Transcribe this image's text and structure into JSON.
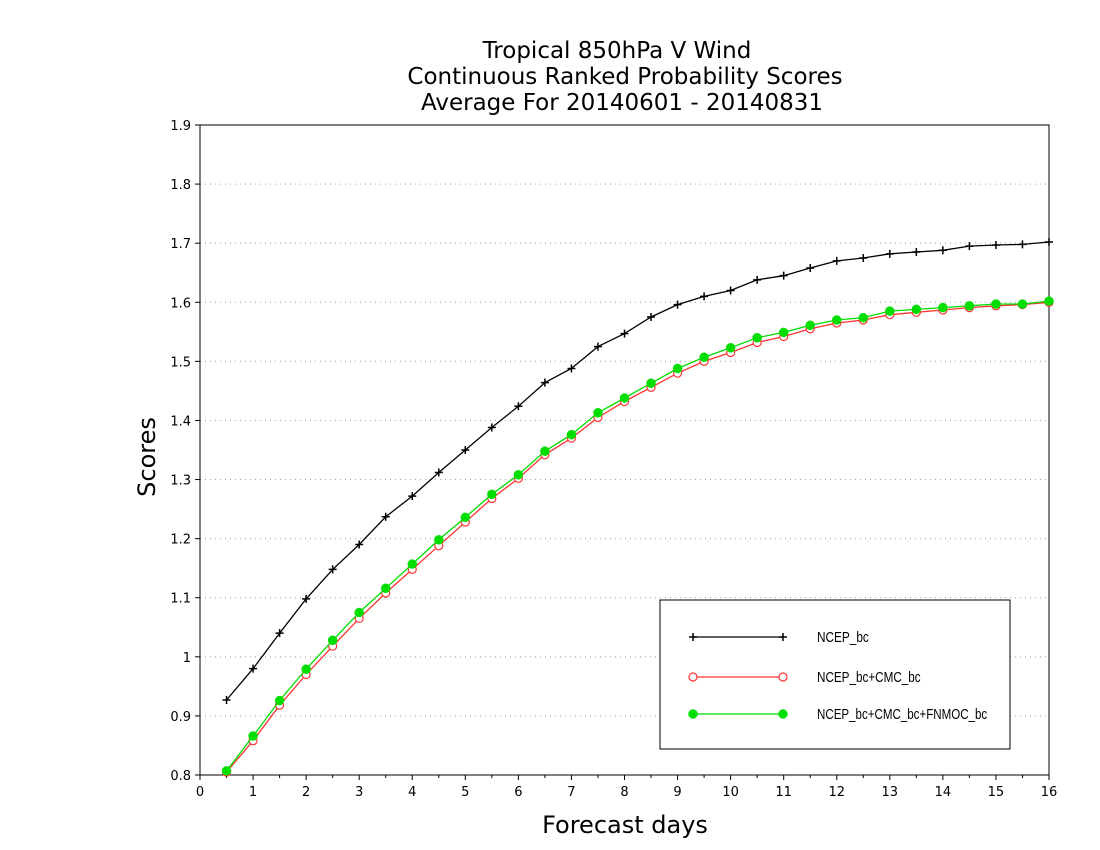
{
  "chart_data": {
    "type": "line",
    "title": [
      "Tropical 850hPa V Wind",
      "Continuous Ranked Probability Scores",
      "Average For 20140601 - 20140831"
    ],
    "xlabel": "Forecast days",
    "ylabel": "Scores",
    "xlim": [
      0,
      16
    ],
    "ylim": [
      0.8,
      1.9
    ],
    "x_ticks": [
      0,
      1,
      2,
      3,
      4,
      5,
      6,
      7,
      8,
      9,
      10,
      11,
      12,
      13,
      14,
      15,
      16
    ],
    "y_ticks": [
      0.8,
      0.9,
      1,
      1.1,
      1.2,
      1.3,
      1.4,
      1.5,
      1.6,
      1.7,
      1.8,
      1.9
    ],
    "y_tick_labels": [
      "0.8",
      "0.9",
      "1",
      "1.1",
      "1.2",
      "1.3",
      "1.4",
      "1.5",
      "1.6",
      "1.7",
      "1.8",
      "1.9"
    ],
    "grid": "horizontal-dotted",
    "legend_position": "bottom-right",
    "x": [
      0.5,
      1,
      1.5,
      2,
      2.5,
      3,
      3.5,
      4,
      4.5,
      5,
      5.5,
      6,
      6.5,
      7,
      7.5,
      8,
      8.5,
      9,
      9.5,
      10,
      10.5,
      11,
      11.5,
      12,
      12.5,
      13,
      13.5,
      14,
      14.5,
      15,
      15.5,
      16
    ],
    "series": [
      {
        "name": "NCEP_bc",
        "color": "#000000",
        "marker": "plus",
        "values": [
          0.927,
          0.98,
          1.04,
          1.098,
          1.148,
          1.19,
          1.237,
          1.272,
          1.312,
          1.35,
          1.388,
          1.424,
          1.464,
          1.488,
          1.525,
          1.547,
          1.575,
          1.596,
          1.61,
          1.62,
          1.638,
          1.645,
          1.658,
          1.67,
          1.675,
          1.682,
          1.685,
          1.688,
          1.695,
          1.697,
          1.698,
          1.702
        ]
      },
      {
        "name": "NCEP_bc+CMC_bc",
        "color": "#ff3333",
        "marker": "open-circle",
        "values": [
          0.805,
          0.858,
          0.918,
          0.97,
          1.018,
          1.065,
          1.108,
          1.148,
          1.188,
          1.228,
          1.268,
          1.302,
          1.342,
          1.37,
          1.405,
          1.432,
          1.456,
          1.48,
          1.5,
          1.515,
          1.532,
          1.542,
          1.555,
          1.565,
          1.57,
          1.579,
          1.583,
          1.587,
          1.591,
          1.594,
          1.596,
          1.6
        ]
      },
      {
        "name": "NCEP_bc+CMC_bc+FNMOC_bc",
        "color": "#00dd00",
        "marker": "filled-circle",
        "values": [
          0.807,
          0.866,
          0.926,
          0.979,
          1.028,
          1.075,
          1.116,
          1.157,
          1.198,
          1.236,
          1.275,
          1.308,
          1.348,
          1.376,
          1.413,
          1.438,
          1.463,
          1.488,
          1.507,
          1.523,
          1.54,
          1.549,
          1.561,
          1.57,
          1.574,
          1.585,
          1.588,
          1.591,
          1.594,
          1.597,
          1.597,
          1.602
        ]
      }
    ]
  }
}
